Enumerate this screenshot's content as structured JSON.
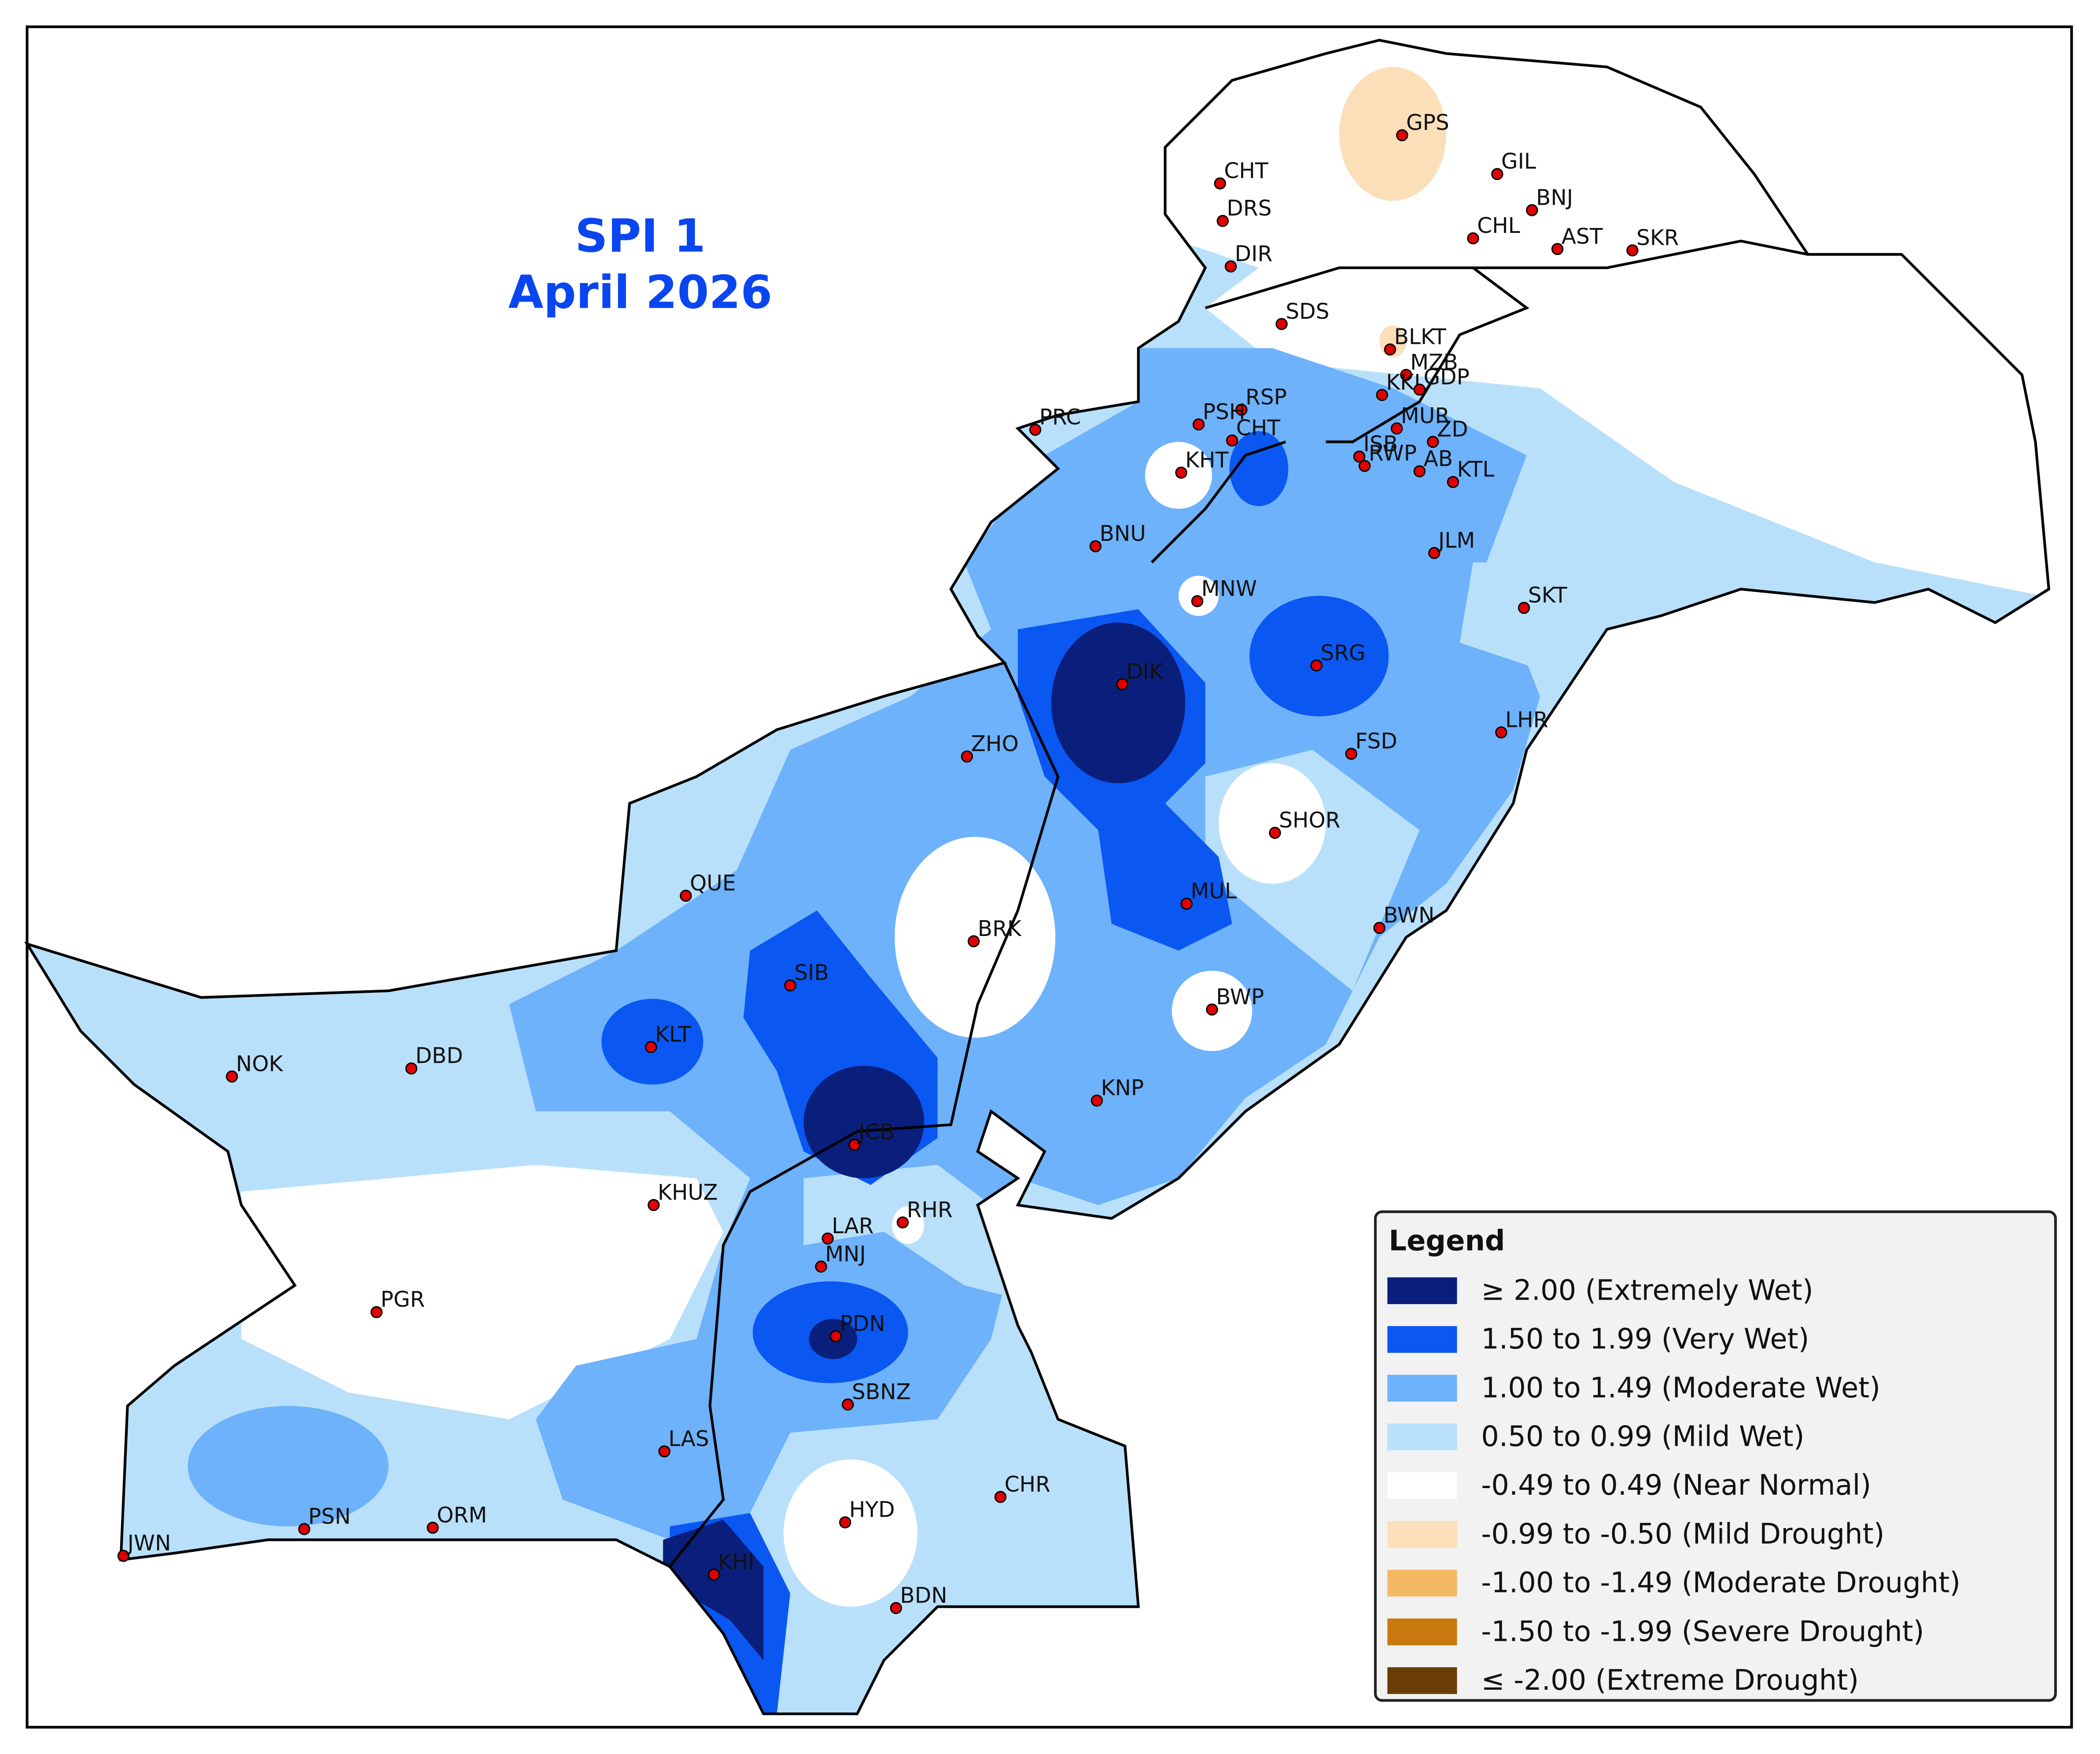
{
  "title": "SPI 1",
  "subtitle": "April 2026",
  "stations": [
    "GPS",
    "CHT",
    "GIL",
    "DRS",
    "BNJ",
    "CHL",
    "AST",
    "SKR",
    "DIR",
    "SDS",
    "BLKT",
    "MZB",
    "KKL",
    "GDP",
    "RSP",
    "PRC",
    "PSH",
    "MUR",
    "CHT",
    "ISB",
    "ZD",
    "RWP",
    "AB",
    "KTL",
    "KHT",
    "BNU",
    "JLM",
    "MNW",
    "SKT",
    "DIK",
    "SRG",
    "LHR",
    "ZHO",
    "FSD",
    "SHOR",
    "QUE",
    "MUL",
    "BRK",
    "BWN",
    "SIB",
    "BWP",
    "KLT",
    "NOK",
    "DBD",
    "KNP",
    "JCB",
    "KHUZ",
    "LAR",
    "RHR",
    "MNJ",
    "PGR",
    "PDN",
    "SBNZ",
    "LAS",
    "CHR",
    "HYD",
    "PSN",
    "ORM",
    "JWN",
    "KHI",
    "BDN"
  ],
  "legend": {
    "title": "Legend",
    "items": [
      {
        "label": "≥ 2.00 (Extremely Wet)",
        "color": "#0a1f7c"
      },
      {
        "label": "1.50 to 1.99 (Very Wet)",
        "color": "#0a57f2"
      },
      {
        "label": "1.00 to 1.49 (Moderate Wet)",
        "color": "#6db2fb"
      },
      {
        "label": "0.50 to 0.99 (Mild Wet)",
        "color": "#b9e0fa"
      },
      {
        "label": "-0.49 to 0.49 (Near Normal)",
        "color": "#ffffff"
      },
      {
        "label": "-0.99 to -0.50 (Mild Drought)",
        "color": "#fbdfb9"
      },
      {
        "label": "-1.00 to -1.49 (Moderate Drought)",
        "color": "#f4b963"
      },
      {
        "label": "-1.50 to -1.99 (Severe Drought)",
        "color": "#c8790e"
      },
      {
        "label": "≤ -2.00 (Extreme Drought)",
        "color": "#6b3d06"
      }
    ]
  }
}
